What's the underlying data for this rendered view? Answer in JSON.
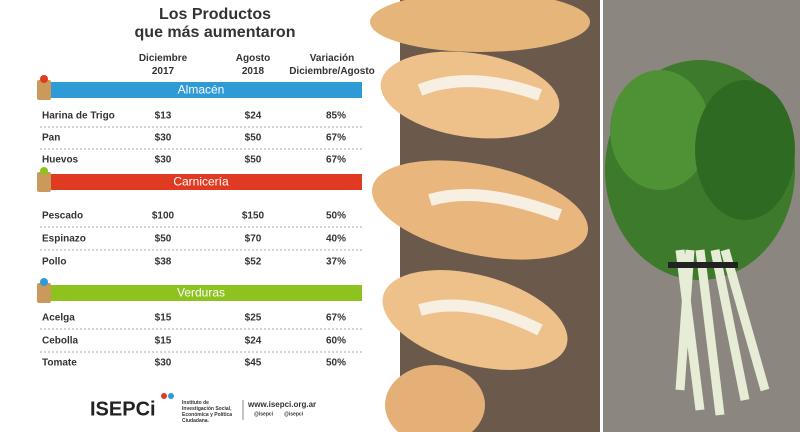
{
  "header": {
    "title": [
      "Los Productos",
      "que más aumentaron"
    ]
  },
  "columns": [
    "Diciembre 2017",
    "Agosto 2018",
    "Variación Diciembre/Agosto"
  ],
  "sections": [
    {
      "name": "Almacén",
      "rows": [
        [
          "Harina de Trigo",
          "$13",
          "$24",
          "85%"
        ],
        [
          "Pan",
          "$30",
          "$50",
          "67%"
        ],
        [
          "Huevos",
          "$30",
          "$50",
          "67%"
        ]
      ]
    },
    {
      "name": "Carnicería",
      "rows": [
        [
          "Pescado",
          "$100",
          "$150",
          "50%"
        ],
        [
          "Espinazo",
          "$50",
          "$70",
          "40%"
        ],
        [
          "Pollo",
          "$38",
          "$52",
          "37%"
        ]
      ]
    },
    {
      "name": "Verduras",
      "rows": [
        [
          "Acelga",
          "$15",
          "$25",
          "67%"
        ],
        [
          "Cebolla",
          "$15",
          "$24",
          "60%"
        ],
        [
          "Tomate",
          "$30",
          "$45",
          "50%"
        ]
      ]
    }
  ],
  "footer": {
    "logo": "ISEPCi",
    "institute": "Instituto de Investigación Social, Económica y Política Ciudadana.",
    "website": "www.isepci.org.ar",
    "social": [
      "@isepci",
      "@isepci"
    ]
  }
}
